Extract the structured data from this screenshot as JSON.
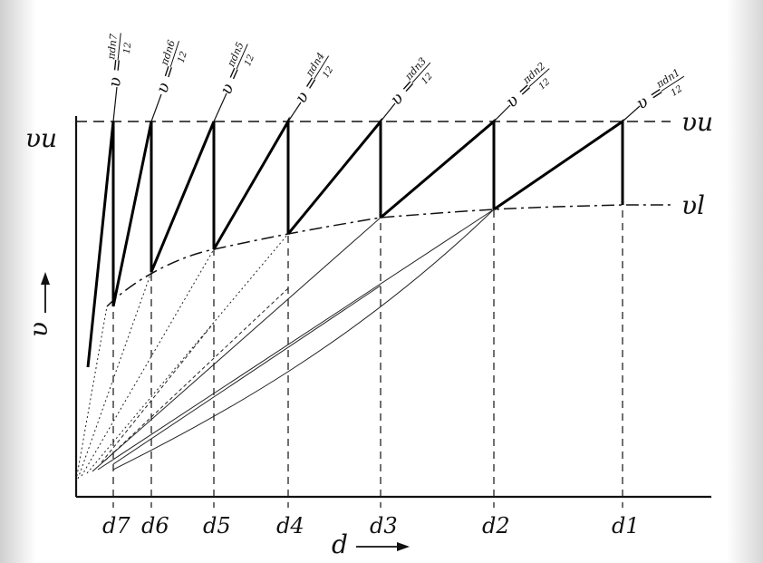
{
  "labels": {
    "vu_left": "υu",
    "vu_right": "υu",
    "vl_right": "υl",
    "y_axis": "υ",
    "x_axis": "d"
  },
  "d_labels": [
    "d7",
    "d6",
    "d5",
    "d4",
    "d3",
    "d2",
    "d1"
  ],
  "formulas": [
    {
      "lhs": "υ =",
      "num": "πdn7",
      "den": "12"
    },
    {
      "lhs": "υ =",
      "num": "πdn6",
      "den": "12"
    },
    {
      "lhs": "υ =",
      "num": "πdn5",
      "den": "12"
    },
    {
      "lhs": "υ =",
      "num": "πdn4",
      "den": "12"
    },
    {
      "lhs": "υ =",
      "num": "πdn3",
      "den": "12"
    },
    {
      "lhs": "υ =",
      "num": "πdn2",
      "den": "12"
    },
    {
      "lhs": "υ =",
      "num": "πdn1",
      "den": "12"
    }
  ]
}
